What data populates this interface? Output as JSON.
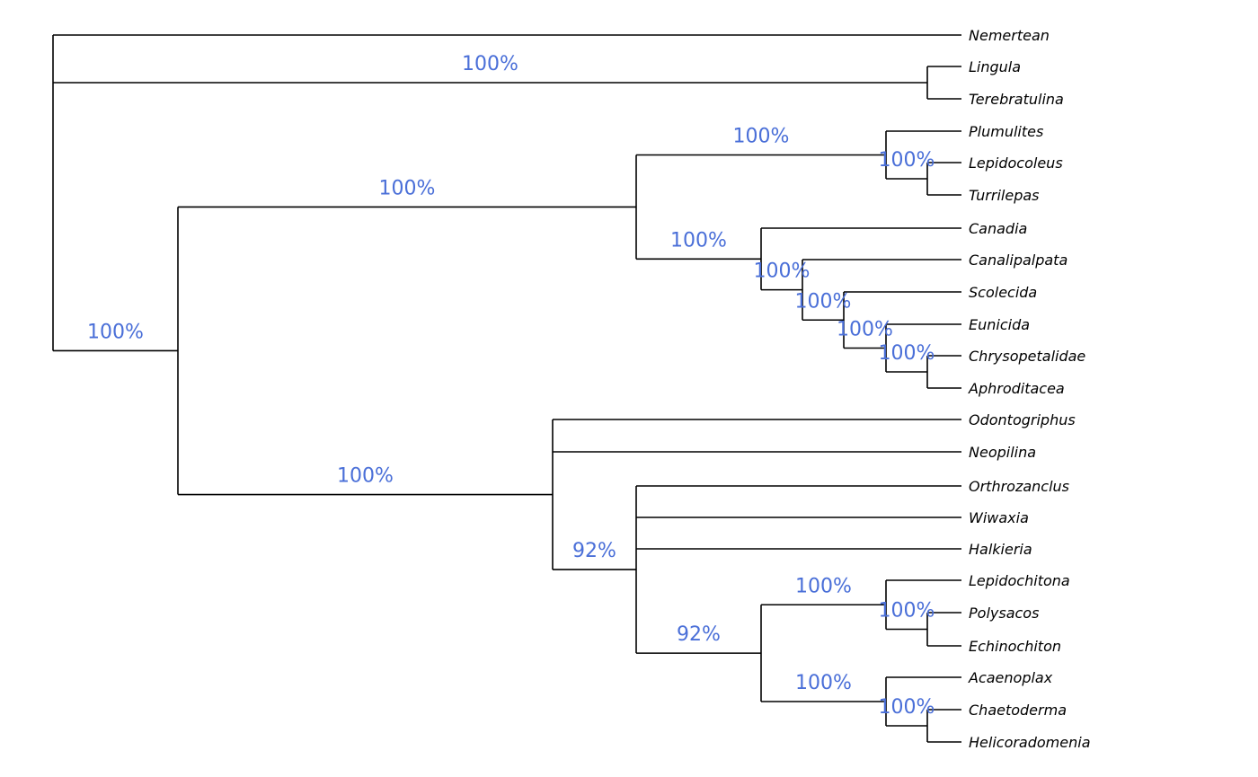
{
  "tree": {
    "tips": [
      "Nemertean",
      "Lingula",
      "Terebratulina",
      "Plumulites",
      "Lepidocoleus",
      "Turrilepas",
      "Canadia",
      "Canalipalpata",
      "Scolecida",
      "Eunicida",
      "Chrysopetalidae",
      "Aphroditacea",
      "Odontogriphus",
      "Neopilina",
      "Orthrozanclus",
      "Wiwaxia",
      "Halkieria",
      "Lepidochitona",
      "Polysacos",
      "Echinochiton",
      "Acaenoplax",
      "Chaetoderma",
      "Helicoradomenia"
    ],
    "supports": {
      "n_brachiopods": "100%",
      "n_rest": "100%",
      "n_upper": "100%",
      "n_machaeridians": "100%",
      "n_lepido_turri": "100%",
      "n_annelids": "100%",
      "n_cana": "100%",
      "n_scol": "100%",
      "n_euni": "100%",
      "n_chrys_aphro": "100%",
      "n_lower": "100%",
      "n_halk_group": "92%",
      "n_chitons_apla": "92%",
      "n_chitons": "100%",
      "n_polys_echino": "100%",
      "n_aplacophora": "100%",
      "n_chaeto_helico": "100%"
    }
  }
}
